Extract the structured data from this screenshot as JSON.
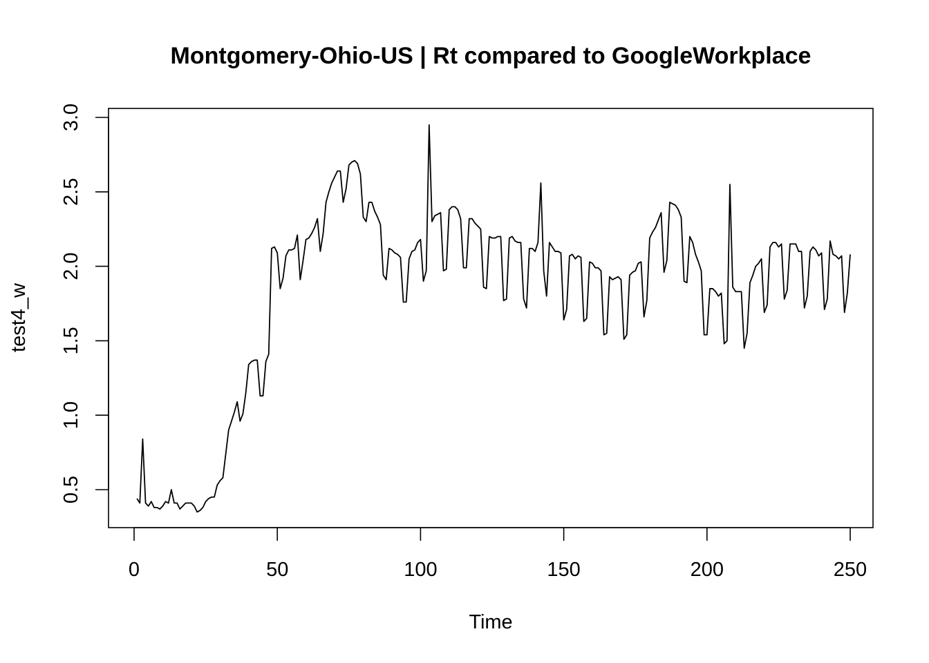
{
  "chart_data": {
    "type": "line",
    "title": "Montgomery-Ohio-US | Rt compared to GoogleWorkplace",
    "xlabel": "Time",
    "ylabel": "test4_w",
    "xlim": [
      1,
      248
    ],
    "ylim": [
      0.35,
      2.95
    ],
    "grid": false,
    "x_ticks": [
      0,
      50,
      100,
      150,
      200,
      250
    ],
    "y_ticks": [
      0.5,
      1.0,
      1.5,
      2.0,
      2.5,
      3.0
    ],
    "x_tick_labels": [
      "0",
      "50",
      "100",
      "150",
      "200",
      "250"
    ],
    "y_tick_labels": [
      "0.5",
      "1.0",
      "1.5",
      "2.0",
      "2.5",
      "3.0"
    ],
    "x_start": 1,
    "series": [
      {
        "values": [
          0.44,
          0.41,
          0.84,
          0.41,
          0.39,
          0.42,
          0.38,
          0.38,
          0.37,
          0.39,
          0.42,
          0.41,
          0.5,
          0.41,
          0.41,
          0.37,
          0.39,
          0.41,
          0.41,
          0.41,
          0.39,
          0.35,
          0.36,
          0.38,
          0.42,
          0.44,
          0.45,
          0.45,
          0.53,
          0.56,
          0.58,
          0.74,
          0.9,
          0.96,
          1.02,
          1.09,
          0.96,
          1.01,
          1.15,
          1.34,
          1.36,
          1.37,
          1.37,
          1.13,
          1.13,
          1.36,
          1.41,
          2.12,
          2.13,
          2.09,
          1.85,
          1.92,
          2.07,
          2.11,
          2.11,
          2.12,
          2.21,
          1.91,
          2.04,
          2.18,
          2.19,
          2.22,
          2.26,
          2.32,
          2.1,
          2.22,
          2.43,
          2.5,
          2.56,
          2.6,
          2.64,
          2.64,
          2.43,
          2.52,
          2.68,
          2.7,
          2.71,
          2.69,
          2.62,
          2.33,
          2.3,
          2.43,
          2.43,
          2.37,
          2.33,
          2.28,
          1.94,
          1.91,
          2.12,
          2.11,
          2.09,
          2.08,
          2.06,
          1.76,
          1.76,
          2.05,
          2.1,
          2.11,
          2.16,
          2.18,
          1.9,
          1.97,
          2.95,
          2.3,
          2.34,
          2.35,
          2.36,
          1.97,
          1.98,
          2.38,
          2.4,
          2.4,
          2.38,
          2.32,
          1.99,
          1.99,
          2.32,
          2.32,
          2.29,
          2.27,
          2.25,
          1.86,
          1.85,
          2.2,
          2.19,
          2.19,
          2.2,
          2.2,
          1.77,
          1.78,
          2.19,
          2.2,
          2.17,
          2.16,
          2.16,
          1.78,
          1.72,
          2.12,
          2.12,
          2.1,
          2.16,
          2.56,
          1.97,
          1.8,
          2.16,
          2.13,
          2.1,
          2.1,
          2.09,
          1.64,
          1.71,
          2.07,
          2.08,
          2.05,
          2.07,
          2.06,
          1.63,
          1.65,
          2.03,
          2.02,
          1.99,
          1.99,
          1.97,
          1.54,
          1.55,
          1.93,
          1.91,
          1.92,
          1.93,
          1.91,
          1.51,
          1.54,
          1.94,
          1.96,
          1.97,
          2.02,
          2.03,
          1.66,
          1.77,
          2.19,
          2.23,
          2.26,
          2.31,
          2.36,
          1.96,
          2.04,
          2.43,
          2.42,
          2.41,
          2.38,
          2.33,
          1.9,
          1.89,
          2.2,
          2.16,
          2.08,
          2.03,
          1.97,
          1.54,
          1.54,
          1.85,
          1.85,
          1.83,
          1.8,
          1.82,
          1.48,
          1.5,
          2.55,
          1.86,
          1.83,
          1.83,
          1.83,
          1.45,
          1.55,
          1.89,
          1.94,
          2.0,
          2.02,
          2.05,
          1.69,
          1.74,
          2.13,
          2.16,
          2.16,
          2.13,
          2.15,
          1.78,
          1.84,
          2.15,
          2.15,
          2.15,
          2.1,
          2.1,
          1.72,
          1.8,
          2.1,
          2.13,
          2.11,
          2.07,
          2.09,
          1.71,
          1.78,
          2.17,
          2.08,
          2.07,
          2.05,
          2.07,
          1.69,
          1.82,
          2.08
        ]
      }
    ]
  }
}
